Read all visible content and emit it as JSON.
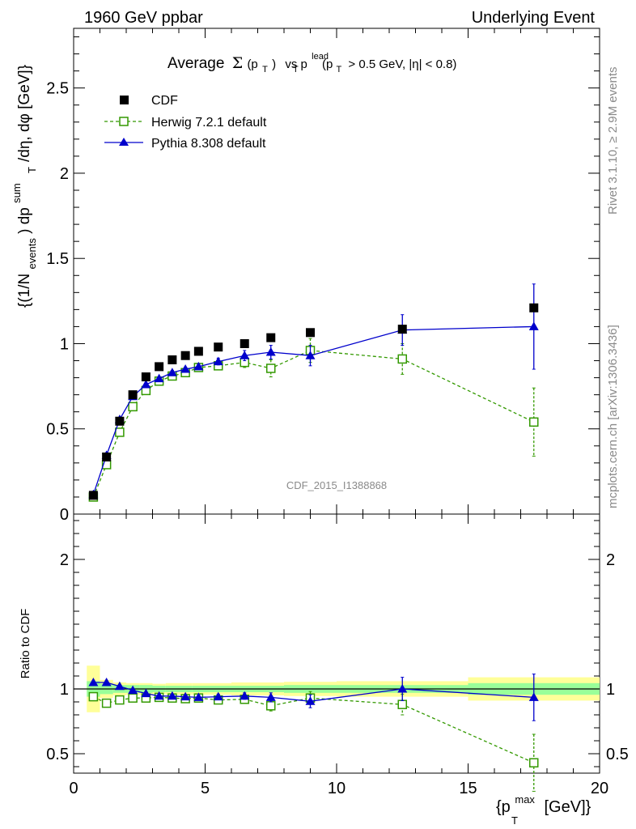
{
  "header": {
    "left": "1960 GeV ppbar",
    "right": "Underlying Event"
  },
  "side": {
    "rivet": "Rivet 3.1.10, ≥ 2.9M events",
    "mcplots": "mcplots.cern.ch [arXiv:1306.3436]"
  },
  "watermark": "CDF_2015_I1388868",
  "title": {
    "average": "Average",
    "sigma": "Σ",
    "pt_open": "(p",
    "T": "T",
    "close": ")",
    "vs": "vs p",
    "lead": "lead",
    "cut": "(p",
    "cut_rest": "> 0.5 GeV, |η| < 0.8)"
  },
  "ylabel_main": {
    "p1": "{(1/N",
    "events": "events",
    "p2": ") dp",
    "sum": "sum",
    "T": "T",
    "p3": "/dη, dφ [GeV]}"
  },
  "ylabel_ratio": "Ratio to CDF",
  "xlabel": {
    "p1": "{p",
    "max": "max",
    "T": "T",
    "p2": "[GeV]}"
  },
  "legend": [
    {
      "label": "CDF",
      "color": "#000000"
    },
    {
      "label": "Herwig 7.2.1 default",
      "color": "#339900"
    },
    {
      "label": "Pythia 8.308 default",
      "color": "#0000cc"
    }
  ],
  "chart_data": [
    {
      "type": "scatter",
      "panel": "main",
      "xlim": [
        0,
        20
      ],
      "ylim": [
        0,
        2.85
      ],
      "x_ticks": [
        0,
        5,
        10,
        15,
        20
      ],
      "y_ticks": [
        0,
        0.5,
        1,
        1.5,
        2,
        2.5
      ],
      "y_tick_labels": [
        "0",
        "0.5",
        "1",
        "1.5",
        "2",
        "2.5"
      ],
      "series": [
        {
          "name": "CDF",
          "x": [
            0.75,
            1.25,
            1.75,
            2.25,
            2.75,
            3.25,
            3.75,
            4.25,
            4.75,
            5.5,
            6.5,
            7.5,
            9.0,
            12.5,
            17.5
          ],
          "y": [
            0.11,
            0.335,
            0.545,
            0.7,
            0.805,
            0.865,
            0.905,
            0.93,
            0.955,
            0.98,
            1.0,
            1.035,
            1.065,
            1.085,
            1.21
          ],
          "err": [
            0,
            0,
            0,
            0,
            0,
            0,
            0,
            0,
            0,
            0,
            0,
            0,
            0,
            0,
            0
          ]
        },
        {
          "name": "Herwig 7.2.1 default",
          "x": [
            0.75,
            1.25,
            1.75,
            2.25,
            2.75,
            3.25,
            3.75,
            4.25,
            4.75,
            5.5,
            6.5,
            7.5,
            9.0,
            12.5,
            17.5
          ],
          "y": [
            0.1,
            0.29,
            0.48,
            0.63,
            0.725,
            0.78,
            0.81,
            0.83,
            0.86,
            0.87,
            0.89,
            0.855,
            0.96,
            0.91,
            0.54
          ],
          "err": [
            0.005,
            0.01,
            0.01,
            0.01,
            0.01,
            0.01,
            0.012,
            0.012,
            0.015,
            0.02,
            0.03,
            0.05,
            0.07,
            0.09,
            0.2
          ]
        },
        {
          "name": "Pythia 8.308 default",
          "x": [
            0.75,
            1.25,
            1.75,
            2.25,
            2.75,
            3.25,
            3.75,
            4.25,
            4.75,
            5.5,
            6.5,
            7.5,
            9.0,
            12.5,
            17.5
          ],
          "y": [
            0.115,
            0.345,
            0.555,
            0.69,
            0.76,
            0.795,
            0.83,
            0.85,
            0.865,
            0.895,
            0.93,
            0.95,
            0.93,
            1.08,
            1.1
          ],
          "err": [
            0.005,
            0.008,
            0.008,
            0.01,
            0.01,
            0.01,
            0.012,
            0.012,
            0.015,
            0.02,
            0.03,
            0.04,
            0.06,
            0.09,
            0.25
          ]
        }
      ]
    },
    {
      "type": "scatter",
      "panel": "ratio",
      "xlim": [
        0,
        20
      ],
      "ylim": [
        0.35,
        2.35
      ],
      "x_ticks": [
        0,
        5,
        10,
        15,
        20
      ],
      "x_tick_labels": [
        "0",
        "5",
        "10",
        "15",
        "20"
      ],
      "y_ticks": [
        0.5,
        1,
        2
      ],
      "y_tick_labels": [
        "0.5",
        "1",
        "2"
      ],
      "ylabel": "Ratio to CDF",
      "bands": {
        "x_edges": [
          0.5,
          1.0,
          1.5,
          2.0,
          2.5,
          3.0,
          3.5,
          4.0,
          4.5,
          5.0,
          6.0,
          7.0,
          8.0,
          10.0,
          15.0,
          20.0
        ],
        "stat_half": [
          0.06,
          0.04,
          0.03,
          0.03,
          0.03,
          0.025,
          0.025,
          0.025,
          0.025,
          0.025,
          0.025,
          0.025,
          0.03,
          0.03,
          0.045
        ],
        "total_half": [
          0.18,
          0.07,
          0.05,
          0.045,
          0.045,
          0.04,
          0.045,
          0.045,
          0.045,
          0.045,
          0.05,
          0.05,
          0.055,
          0.06,
          0.09
        ],
        "stat_color": "#99ff99",
        "total_color": "#ffff99"
      },
      "series": [
        {
          "name": "Herwig 7.2.1 default",
          "x": [
            0.75,
            1.25,
            1.75,
            2.25,
            2.75,
            3.25,
            3.75,
            4.25,
            4.75,
            5.5,
            6.5,
            7.5,
            9.0,
            12.5,
            17.5
          ],
          "y": [
            0.94,
            0.89,
            0.915,
            0.93,
            0.93,
            0.935,
            0.93,
            0.925,
            0.93,
            0.915,
            0.92,
            0.87,
            0.93,
            0.88,
            0.43
          ],
          "err": [
            0.01,
            0.01,
            0.01,
            0.01,
            0.01,
            0.01,
            0.01,
            0.012,
            0.015,
            0.02,
            0.025,
            0.04,
            0.05,
            0.08,
            0.22
          ]
        },
        {
          "name": "Pythia 8.308 default",
          "x": [
            0.75,
            1.25,
            1.75,
            2.25,
            2.75,
            3.25,
            3.75,
            4.25,
            4.75,
            5.5,
            6.5,
            7.5,
            9.0,
            12.5,
            17.5
          ],
          "y": [
            1.05,
            1.05,
            1.02,
            0.99,
            0.965,
            0.945,
            0.945,
            0.94,
            0.935,
            0.94,
            0.945,
            0.935,
            0.905,
            1.0,
            0.935
          ],
          "err": [
            0.01,
            0.01,
            0.01,
            0.01,
            0.01,
            0.01,
            0.012,
            0.012,
            0.015,
            0.02,
            0.025,
            0.035,
            0.05,
            0.09,
            0.18
          ]
        }
      ]
    }
  ]
}
